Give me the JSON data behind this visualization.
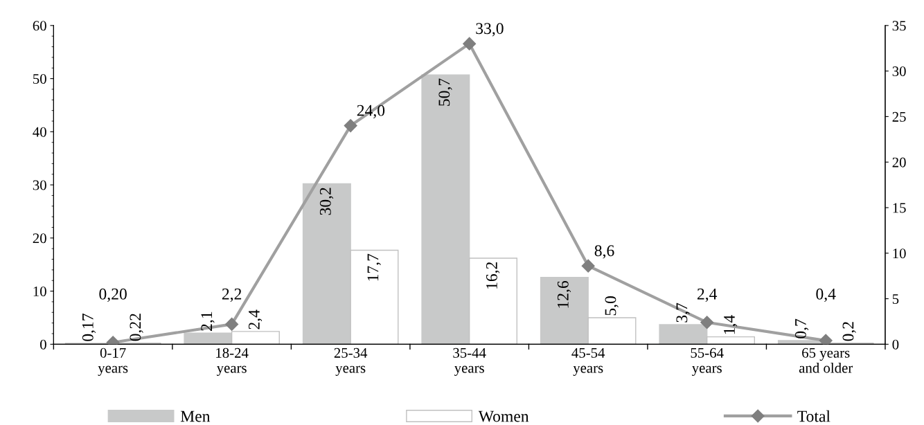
{
  "chart_data": {
    "type": "bar",
    "categories": [
      "0-17\nyears",
      "18-24\nyears",
      "25-34\nyears",
      "35-44\nyears",
      "45-54\nyears",
      "55-64\nyears",
      "65 years\nand older"
    ],
    "series": [
      {
        "name": "Men",
        "color": "#c8c9c9",
        "values": [
          0.17,
          2.1,
          30.2,
          50.7,
          12.6,
          3.7,
          0.7
        ],
        "value_labels": [
          "0,17",
          "2,1",
          "30,2",
          "50,7",
          "12,6",
          "3,7",
          "0,7"
        ]
      },
      {
        "name": "Women",
        "color": "#ffffff",
        "values": [
          0.22,
          2.4,
          17.7,
          16.2,
          5.0,
          1.4,
          0.2
        ],
        "value_labels": [
          "0,22",
          "2,4",
          "17,7",
          "16,2",
          "5,0",
          "1,4",
          "0,2"
        ]
      },
      {
        "name": "Total",
        "type": "line",
        "axis": "y2",
        "color": "#a0a0a0",
        "marker": "diamond",
        "values": [
          0.2,
          2.2,
          24.0,
          33.0,
          8.6,
          2.4,
          0.4
        ],
        "value_labels": [
          "0,20",
          "2,2",
          "24,0",
          "33,0",
          "8,6",
          "2,4",
          "0,4"
        ]
      }
    ],
    "ylim": [
      0,
      60
    ],
    "yticks": [
      0,
      10,
      20,
      30,
      40,
      50,
      60
    ],
    "y2lim": [
      0,
      35
    ],
    "y2ticks": [
      0,
      5,
      10,
      15,
      20,
      25,
      30,
      35
    ],
    "grid": false,
    "legend": "bottom"
  }
}
